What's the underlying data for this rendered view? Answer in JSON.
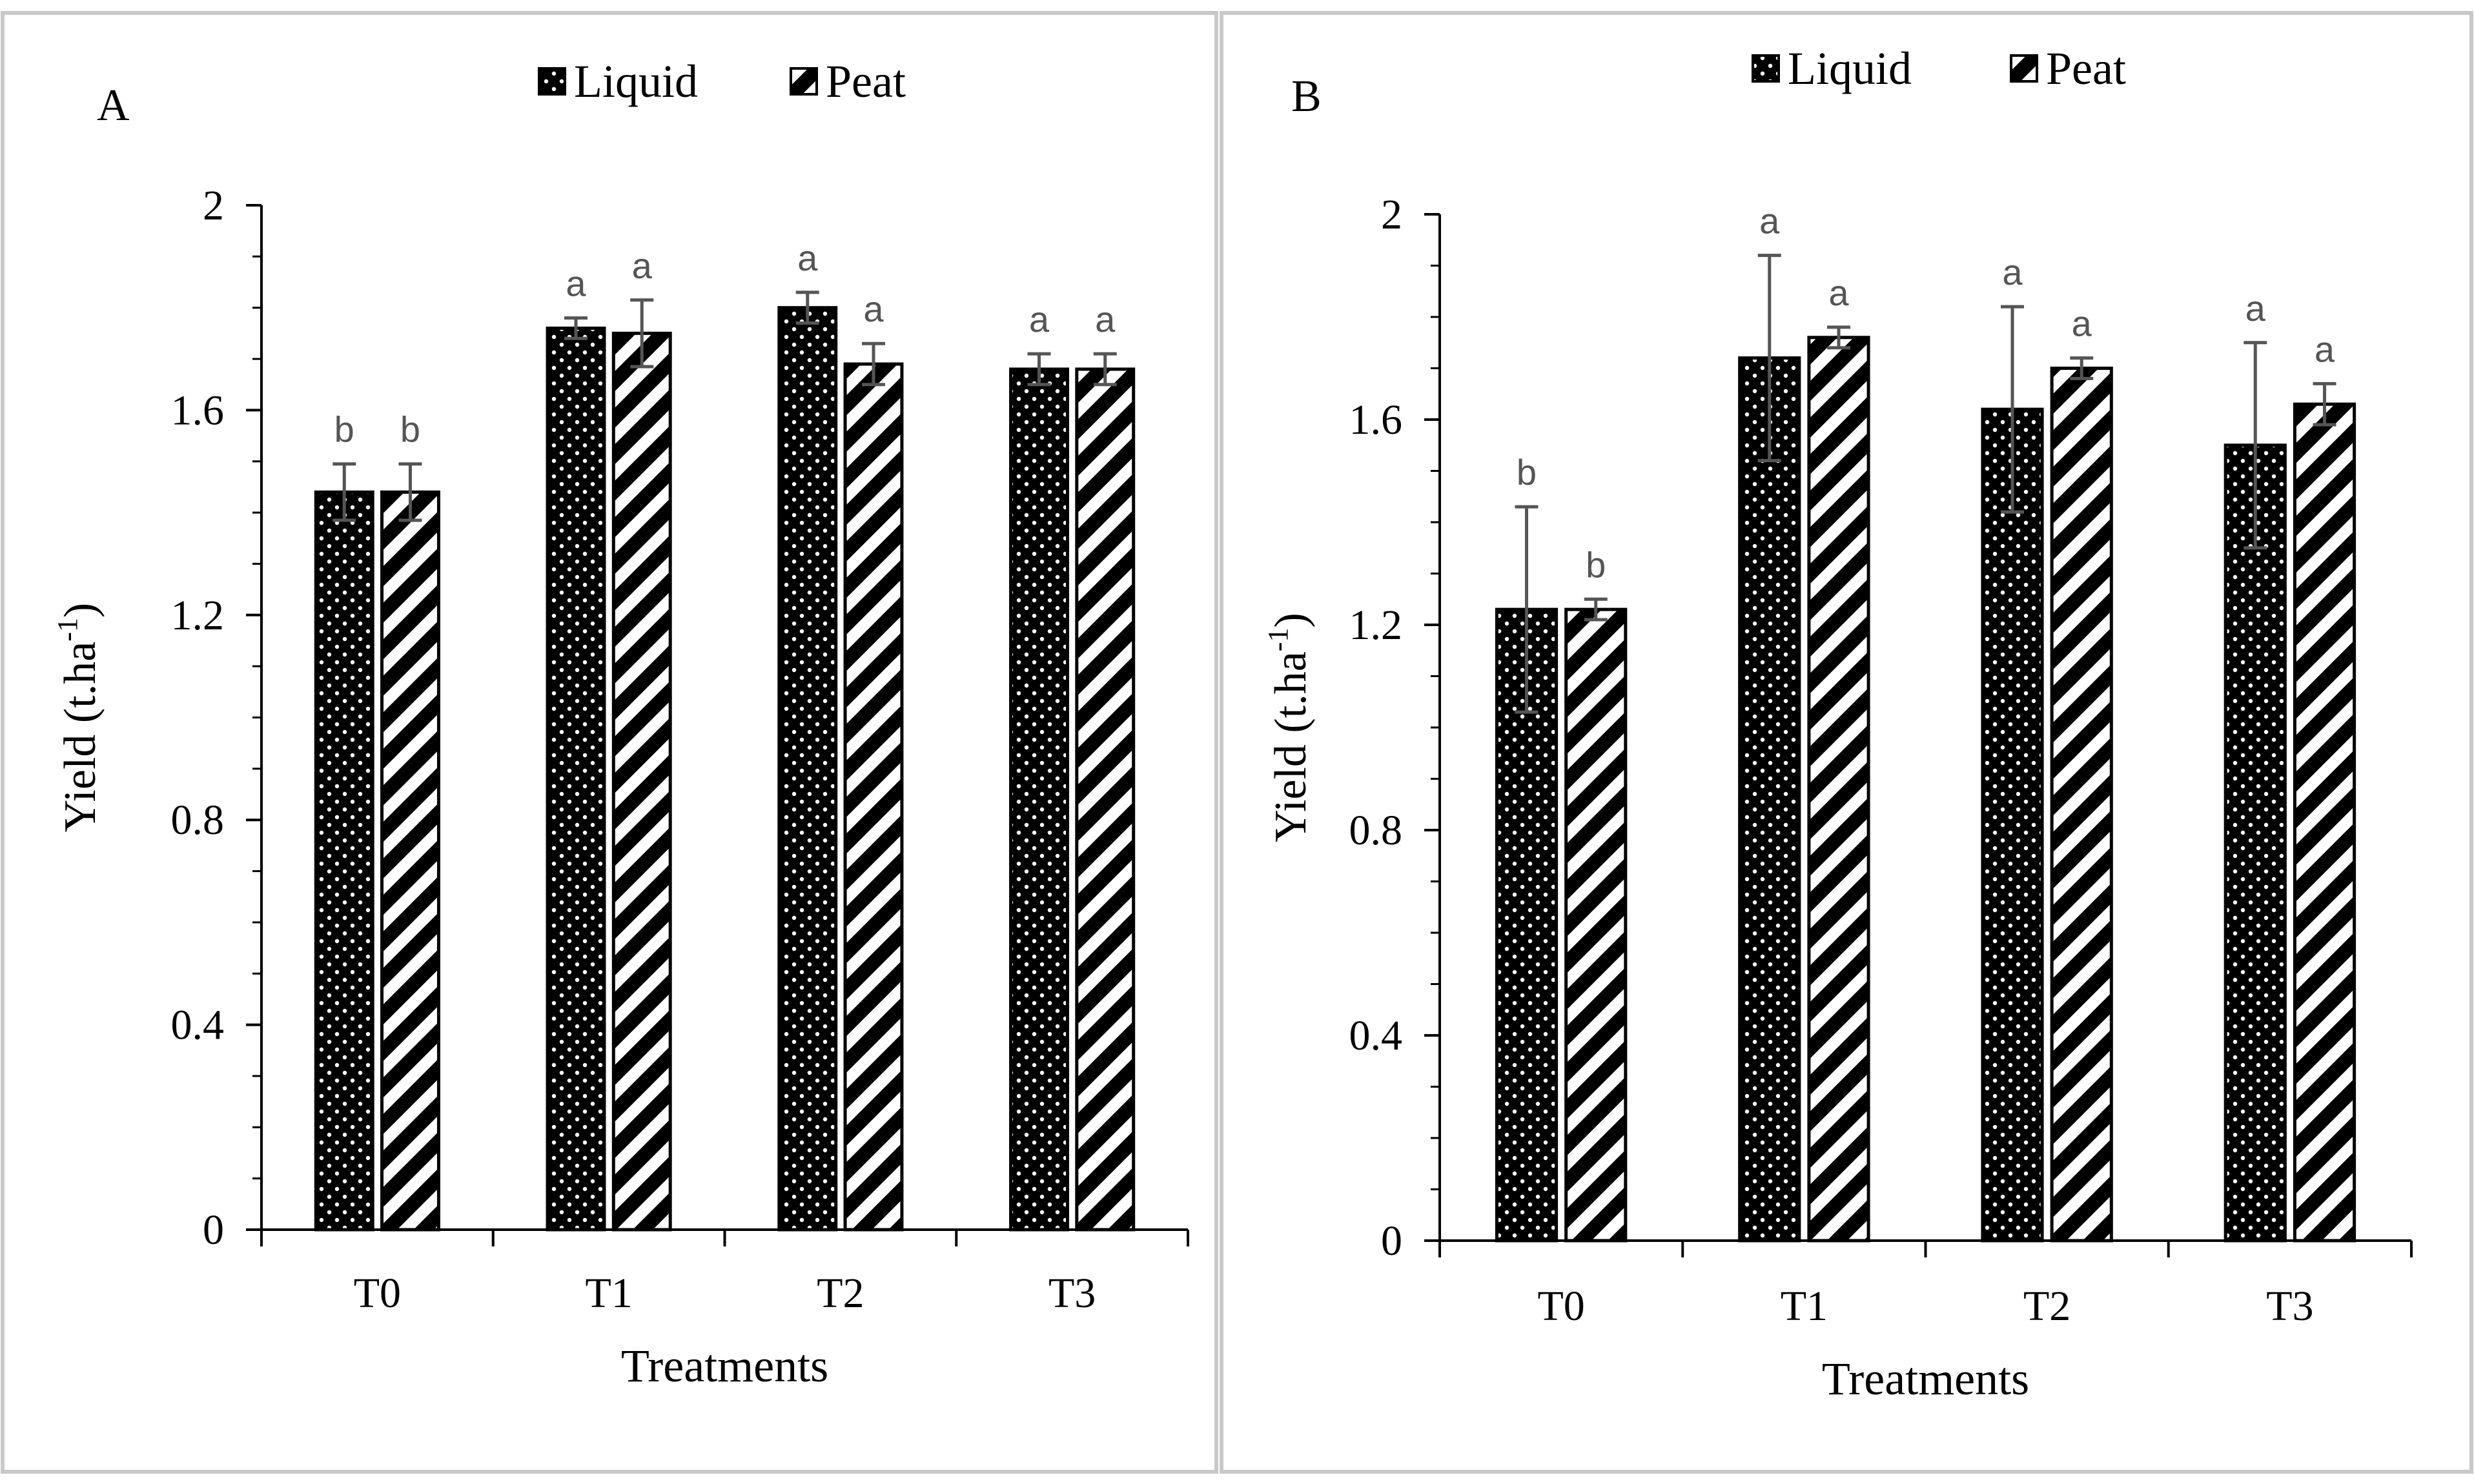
{
  "colors": {
    "bar_fill": "#000000",
    "dot": "#ffffff",
    "error_bar": "#555555",
    "axis": "#000000",
    "panel_border": "#c8c8c8"
  },
  "legend": {
    "series": [
      "Liquid",
      "Peat"
    ]
  },
  "chart_data": [
    {
      "type": "bar",
      "panel_label": "A",
      "categories": [
        "T0",
        "T1",
        "T2",
        "T3"
      ],
      "series": [
        {
          "name": "Liquid",
          "pattern": "dots",
          "values": [
            1.44,
            1.76,
            1.8,
            1.68
          ],
          "errors": [
            0.055,
            0.02,
            0.03,
            0.03
          ],
          "labels": [
            "b",
            "a",
            "a",
            "a"
          ]
        },
        {
          "name": "Peat",
          "pattern": "diagonal-stripes",
          "values": [
            1.44,
            1.75,
            1.69,
            1.68
          ],
          "errors": [
            0.055,
            0.065,
            0.04,
            0.03
          ],
          "labels": [
            "b",
            "a",
            "a",
            "a"
          ]
        }
      ],
      "xlabel": "Treatments",
      "ylabel": {
        "text": "Yield (t.ha",
        "superscript": "-1",
        "suffix": ")"
      },
      "ylim": [
        0,
        2
      ],
      "yticks": [
        0,
        0.4,
        0.8,
        1.2,
        1.6,
        2
      ],
      "ytick_labels": [
        "0",
        "0.4",
        "0.8",
        "1.2",
        "1.6",
        "2"
      ]
    },
    {
      "type": "bar",
      "panel_label": "B",
      "categories": [
        "T0",
        "T1",
        "T2",
        "T3"
      ],
      "series": [
        {
          "name": "Liquid",
          "pattern": "dots",
          "values": [
            1.23,
            1.72,
            1.62,
            1.55
          ],
          "errors": [
            0.2,
            0.2,
            0.2,
            0.2
          ],
          "labels": [
            "b",
            "a",
            "a",
            "a"
          ]
        },
        {
          "name": "Peat",
          "pattern": "diagonal-stripes",
          "values": [
            1.23,
            1.76,
            1.7,
            1.63
          ],
          "errors": [
            0.02,
            0.02,
            0.02,
            0.04
          ],
          "labels": [
            "b",
            "a",
            "a",
            "a"
          ]
        }
      ],
      "xlabel": "Treatments",
      "ylabel": {
        "text": "Yield (t.ha",
        "superscript": "-1",
        "suffix": ")"
      },
      "ylim": [
        0,
        2
      ],
      "yticks": [
        0,
        0.4,
        0.8,
        1.2,
        1.6,
        2
      ],
      "ytick_labels": [
        "0",
        "0.4",
        "0.8",
        "1.2",
        "1.6",
        "2"
      ]
    }
  ]
}
